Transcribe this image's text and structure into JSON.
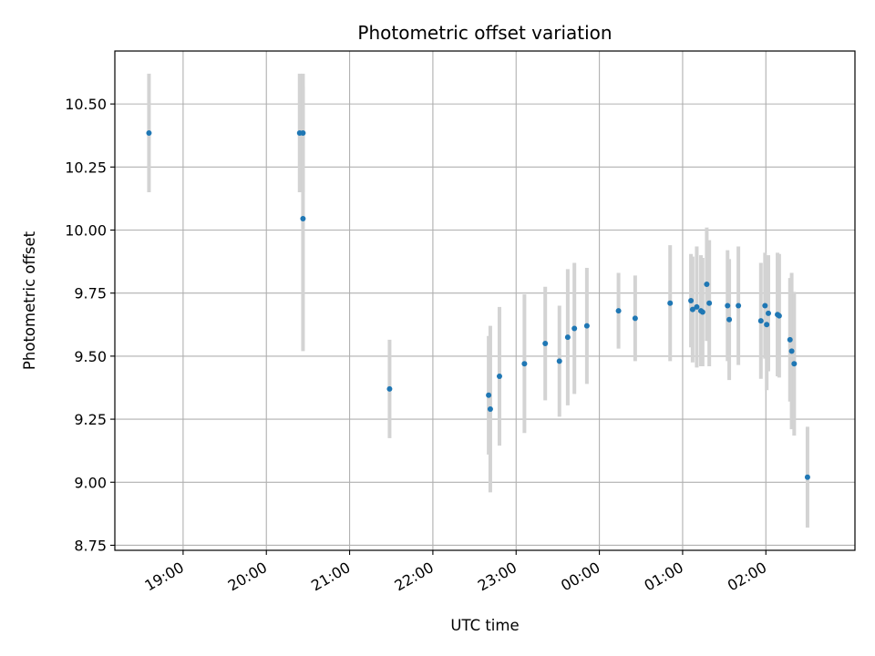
{
  "chart_data": {
    "type": "scatter",
    "title": "Photometric offset variation",
    "xlabel": "UTC time",
    "ylabel": "Photometric offset",
    "x_axis_kind": "time, hours since 19:00 UTC (values after midnight continue above 5)",
    "xlim": [
      -0.82,
      8.07
    ],
    "ylim": [
      8.73,
      10.71
    ],
    "x_ticks": [
      {
        "value": 0,
        "label": "19:00"
      },
      {
        "value": 1,
        "label": "20:00"
      },
      {
        "value": 2,
        "label": "21:00"
      },
      {
        "value": 3,
        "label": "22:00"
      },
      {
        "value": 4,
        "label": "23:00"
      },
      {
        "value": 5,
        "label": "00:00"
      },
      {
        "value": 6,
        "label": "01:00"
      },
      {
        "value": 7,
        "label": "02:00"
      }
    ],
    "y_ticks": [
      {
        "value": 8.75,
        "label": "8.75"
      },
      {
        "value": 9.0,
        "label": "9.00"
      },
      {
        "value": 9.25,
        "label": "9.25"
      },
      {
        "value": 9.5,
        "label": "9.50"
      },
      {
        "value": 9.75,
        "label": "9.75"
      },
      {
        "value": 10.0,
        "label": "10.00"
      },
      {
        "value": 10.25,
        "label": "10.25"
      },
      {
        "value": 10.5,
        "label": "10.50"
      }
    ],
    "grid": true,
    "marker_color": "#1f77b4",
    "errorbar_color": "#d3d3d3",
    "points": [
      {
        "x": -0.41,
        "y": 10.385,
        "err": 0.235
      },
      {
        "x": 1.4,
        "y": 10.385,
        "err": 0.235
      },
      {
        "x": 1.44,
        "y": 10.385,
        "err": 0.235
      },
      {
        "x": 1.44,
        "y": 10.045,
        "err": 0.525
      },
      {
        "x": 2.48,
        "y": 9.37,
        "err": 0.195
      },
      {
        "x": 3.67,
        "y": 9.345,
        "err": 0.235
      },
      {
        "x": 3.69,
        "y": 9.29,
        "err": 0.33
      },
      {
        "x": 3.8,
        "y": 9.42,
        "err": 0.275
      },
      {
        "x": 4.1,
        "y": 9.47,
        "err": 0.275
      },
      {
        "x": 4.35,
        "y": 9.55,
        "err": 0.225
      },
      {
        "x": 4.52,
        "y": 9.48,
        "err": 0.22
      },
      {
        "x": 4.62,
        "y": 9.575,
        "err": 0.27
      },
      {
        "x": 4.7,
        "y": 9.61,
        "err": 0.26
      },
      {
        "x": 4.85,
        "y": 9.62,
        "err": 0.23
      },
      {
        "x": 5.23,
        "y": 9.68,
        "err": 0.15
      },
      {
        "x": 5.43,
        "y": 9.65,
        "err": 0.17
      },
      {
        "x": 5.85,
        "y": 9.71,
        "err": 0.23
      },
      {
        "x": 6.1,
        "y": 9.72,
        "err": 0.185
      },
      {
        "x": 6.12,
        "y": 9.685,
        "err": 0.21
      },
      {
        "x": 6.17,
        "y": 9.695,
        "err": 0.24
      },
      {
        "x": 6.22,
        "y": 9.68,
        "err": 0.22
      },
      {
        "x": 6.24,
        "y": 9.675,
        "err": 0.215
      },
      {
        "x": 6.29,
        "y": 9.785,
        "err": 0.225
      },
      {
        "x": 6.32,
        "y": 9.71,
        "err": 0.25
      },
      {
        "x": 6.54,
        "y": 9.7,
        "err": 0.22
      },
      {
        "x": 6.56,
        "y": 9.645,
        "err": 0.24
      },
      {
        "x": 6.67,
        "y": 9.7,
        "err": 0.235
      },
      {
        "x": 6.94,
        "y": 9.64,
        "err": 0.23
      },
      {
        "x": 6.99,
        "y": 9.7,
        "err": 0.21
      },
      {
        "x": 7.01,
        "y": 9.625,
        "err": 0.26
      },
      {
        "x": 7.03,
        "y": 9.67,
        "err": 0.23
      },
      {
        "x": 7.14,
        "y": 9.665,
        "err": 0.245
      },
      {
        "x": 7.16,
        "y": 9.66,
        "err": 0.245
      },
      {
        "x": 7.29,
        "y": 9.565,
        "err": 0.245
      },
      {
        "x": 7.31,
        "y": 9.52,
        "err": 0.31
      },
      {
        "x": 7.34,
        "y": 9.47,
        "err": 0.285
      },
      {
        "x": 7.5,
        "y": 9.02,
        "err": 0.2
      }
    ]
  }
}
